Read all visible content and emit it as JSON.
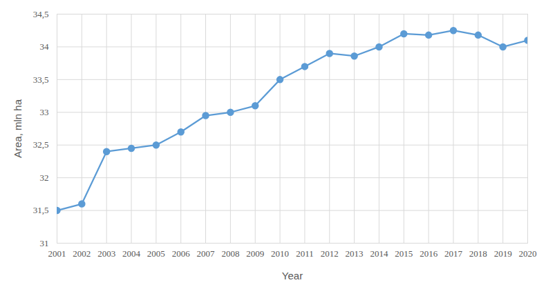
{
  "chart_data": {
    "type": "line",
    "x_label": "Year",
    "y_label": "Area, mln ha",
    "x": [
      2001,
      2002,
      2003,
      2004,
      2005,
      2006,
      2007,
      2008,
      2009,
      2010,
      2011,
      2012,
      2013,
      2014,
      2015,
      2016,
      2017,
      2018,
      2019,
      2020
    ],
    "values": [
      31.5,
      31.6,
      32.4,
      32.45,
      32.5,
      32.7,
      32.95,
      33.0,
      33.1,
      33.5,
      33.7,
      33.9,
      33.86,
      34.0,
      34.2,
      34.18,
      34.25,
      34.18,
      34.0,
      34.1
    ],
    "color": "#5b9bd5",
    "marker": "circle",
    "line_style": "solid",
    "xlim": [
      2001,
      2020
    ],
    "xticks": [
      2001,
      2002,
      2003,
      2004,
      2005,
      2006,
      2007,
      2008,
      2009,
      2010,
      2011,
      2012,
      2013,
      2014,
      2015,
      2016,
      2017,
      2018,
      2019,
      2020
    ],
    "ylim": [
      31,
      34.5
    ],
    "yticks": [
      31,
      {
        "value": 31.5,
        "label": "31,5"
      },
      32,
      {
        "value": 32.5,
        "label": "32,5"
      },
      33,
      {
        "value": 33.5,
        "label": "33,5"
      },
      34,
      {
        "value": 34.5,
        "label": "34,5"
      }
    ],
    "grid": true
  }
}
